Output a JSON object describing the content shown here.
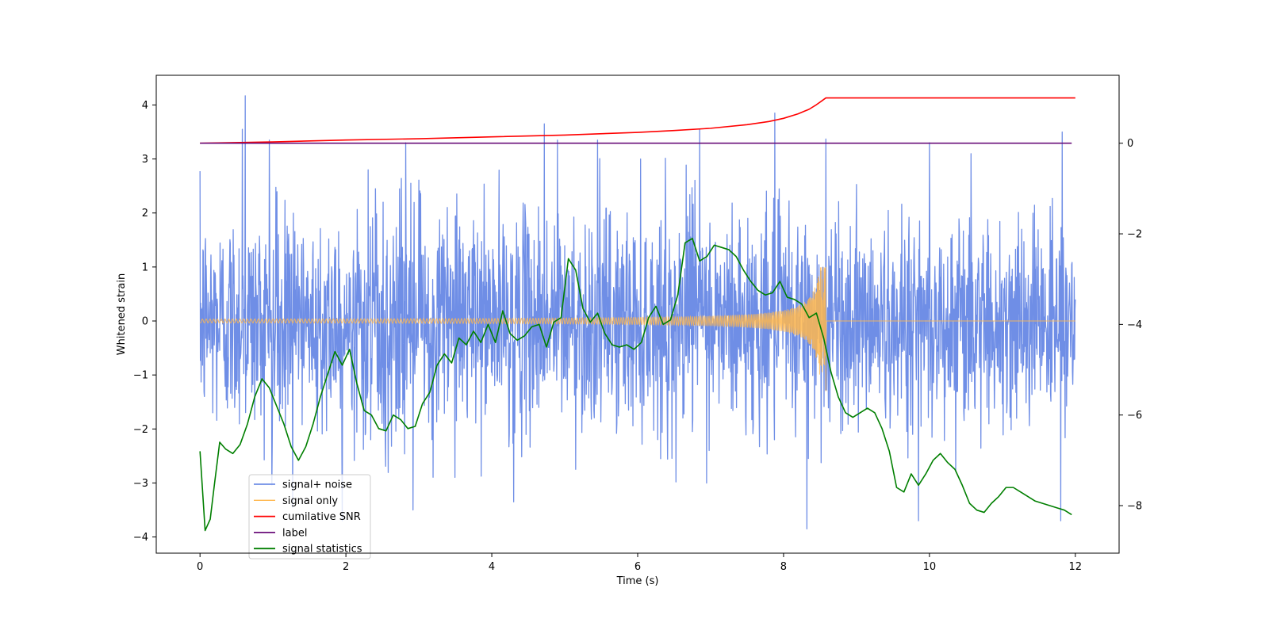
{
  "chart_data": {
    "type": "line",
    "xlabel": "Time (s)",
    "ylabel": "Whitened strain",
    "xlim": [
      -0.6,
      12.6
    ],
    "ylim": [
      -4.3,
      4.55
    ],
    "y2lim": [
      -9.05,
      1.5
    ],
    "x_ticks": [
      0,
      2,
      4,
      6,
      8,
      10,
      12
    ],
    "y_ticks": [
      -4,
      -3,
      -2,
      -1,
      0,
      1,
      2,
      3,
      4
    ],
    "y2_ticks": [
      -8,
      -6,
      -4,
      -2,
      0
    ],
    "legend_placement": "lower-left",
    "grid": false,
    "series": [
      {
        "name": "signal+ noise",
        "axis": "left",
        "color": "#6f8ee6",
        "x_start": 0,
        "x_end": 12,
        "samples": 2400,
        "envelope_low": -2.5,
        "envelope_high": 2.5,
        "noise_sigma": 1.0,
        "peaks": [
          [
            0.62,
            4.17
          ],
          [
            0.58,
            3.55
          ],
          [
            0.95,
            3.35
          ],
          [
            2.82,
            3.3
          ],
          [
            4.72,
            3.65
          ],
          [
            4.9,
            3.35
          ],
          [
            5.45,
            3.35
          ],
          [
            6.85,
            3.55
          ],
          [
            7.88,
            3.85
          ],
          [
            8.58,
            3.37
          ],
          [
            10.0,
            3.3
          ],
          [
            11.82,
            3.5
          ],
          [
            8.32,
            -3.85
          ],
          [
            1.95,
            -3.7
          ],
          [
            2.92,
            -3.5
          ],
          [
            9.85,
            -3.7
          ],
          [
            11.8,
            -3.7
          ],
          [
            1.27,
            -3.45
          ],
          [
            4.3,
            -3.35
          ]
        ]
      },
      {
        "name": "signal only",
        "axis": "left",
        "color": "#ffb74d",
        "chirp_start": 0,
        "chirp_end": 8.58,
        "amp_start": 0.02,
        "amp_peak_high": 1.0,
        "amp_peak_low": -1.3,
        "after_value": 0
      },
      {
        "name": "cumilative SNR",
        "axis": "right",
        "color": "#ff0000",
        "x": [
          0,
          1,
          2,
          3,
          4,
          5,
          6,
          6.5,
          7,
          7.5,
          7.8,
          8.0,
          8.2,
          8.35,
          8.45,
          8.52,
          8.58,
          12
        ],
        "y": [
          0.0,
          0.03,
          0.07,
          0.1,
          0.14,
          0.18,
          0.24,
          0.28,
          0.33,
          0.41,
          0.48,
          0.55,
          0.65,
          0.75,
          0.85,
          0.93,
          1.0,
          1.0
        ]
      },
      {
        "name": "label",
        "axis": "right",
        "color": "#6a0f7a",
        "x": [
          0,
          11.95
        ],
        "y": [
          0,
          0
        ]
      },
      {
        "name": "signal statistics",
        "axis": "right",
        "color": "#007f00",
        "x": [
          0,
          0.07,
          0.14,
          0.2,
          0.27,
          0.35,
          0.45,
          0.55,
          0.65,
          0.75,
          0.85,
          0.95,
          1.05,
          1.15,
          1.25,
          1.35,
          1.45,
          1.55,
          1.65,
          1.75,
          1.85,
          1.95,
          2.05,
          2.15,
          2.25,
          2.35,
          2.45,
          2.55,
          2.65,
          2.75,
          2.85,
          2.95,
          3.05,
          3.15,
          3.25,
          3.35,
          3.45,
          3.55,
          3.65,
          3.75,
          3.85,
          3.95,
          4.05,
          4.15,
          4.25,
          4.35,
          4.45,
          4.55,
          4.65,
          4.75,
          4.85,
          4.95,
          5.05,
          5.15,
          5.25,
          5.35,
          5.45,
          5.55,
          5.65,
          5.75,
          5.85,
          5.95,
          6.05,
          6.15,
          6.25,
          6.35,
          6.45,
          6.55,
          6.65,
          6.75,
          6.85,
          6.95,
          7.05,
          7.15,
          7.25,
          7.35,
          7.45,
          7.55,
          7.65,
          7.75,
          7.85,
          7.95,
          8.05,
          8.15,
          8.25,
          8.35,
          8.45,
          8.55,
          8.65,
          8.75,
          8.85,
          8.95,
          9.05,
          9.15,
          9.25,
          9.35,
          9.45,
          9.55,
          9.65,
          9.75,
          9.85,
          9.95,
          10.05,
          10.15,
          10.25,
          10.35,
          10.45,
          10.55,
          10.65,
          10.75,
          10.85,
          10.95,
          11.05,
          11.15,
          11.25,
          11.35,
          11.45,
          11.55,
          11.65,
          11.75,
          11.85,
          11.95
        ],
        "y": [
          -6.8,
          -8.55,
          -8.3,
          -7.5,
          -6.6,
          -6.75,
          -6.85,
          -6.65,
          -6.2,
          -5.6,
          -5.2,
          -5.4,
          -5.8,
          -6.2,
          -6.7,
          -7.0,
          -6.7,
          -6.2,
          -5.6,
          -5.1,
          -4.6,
          -4.9,
          -4.55,
          -5.3,
          -5.9,
          -6.0,
          -6.3,
          -6.35,
          -6.0,
          -6.1,
          -6.3,
          -6.25,
          -5.75,
          -5.5,
          -4.9,
          -4.65,
          -4.85,
          -4.3,
          -4.45,
          -4.15,
          -4.4,
          -4.0,
          -4.4,
          -3.7,
          -4.2,
          -4.35,
          -4.25,
          -4.05,
          -4.0,
          -4.5,
          -3.95,
          -3.85,
          -2.55,
          -2.8,
          -3.65,
          -3.95,
          -3.75,
          -4.2,
          -4.45,
          -4.5,
          -4.45,
          -4.55,
          -4.4,
          -3.85,
          -3.6,
          -4.0,
          -3.9,
          -3.35,
          -2.2,
          -2.1,
          -2.6,
          -2.5,
          -2.25,
          -2.3,
          -2.35,
          -2.5,
          -2.8,
          -3.05,
          -3.25,
          -3.35,
          -3.3,
          -3.05,
          -3.4,
          -3.45,
          -3.55,
          -3.85,
          -3.75,
          -4.3,
          -5.05,
          -5.6,
          -5.95,
          -6.05,
          -5.95,
          -5.85,
          -5.95,
          -6.3,
          -6.8,
          -7.6,
          -7.7,
          -7.3,
          -7.55,
          -7.3,
          -7.0,
          -6.85,
          -7.05,
          -7.2,
          -7.55,
          -7.95,
          -8.1,
          -8.15,
          -7.95,
          -7.8,
          -7.6,
          -7.6,
          -7.7,
          -7.8,
          -7.9,
          -7.95,
          -8.0,
          -8.05,
          -8.1,
          -8.2
        ]
      }
    ]
  }
}
